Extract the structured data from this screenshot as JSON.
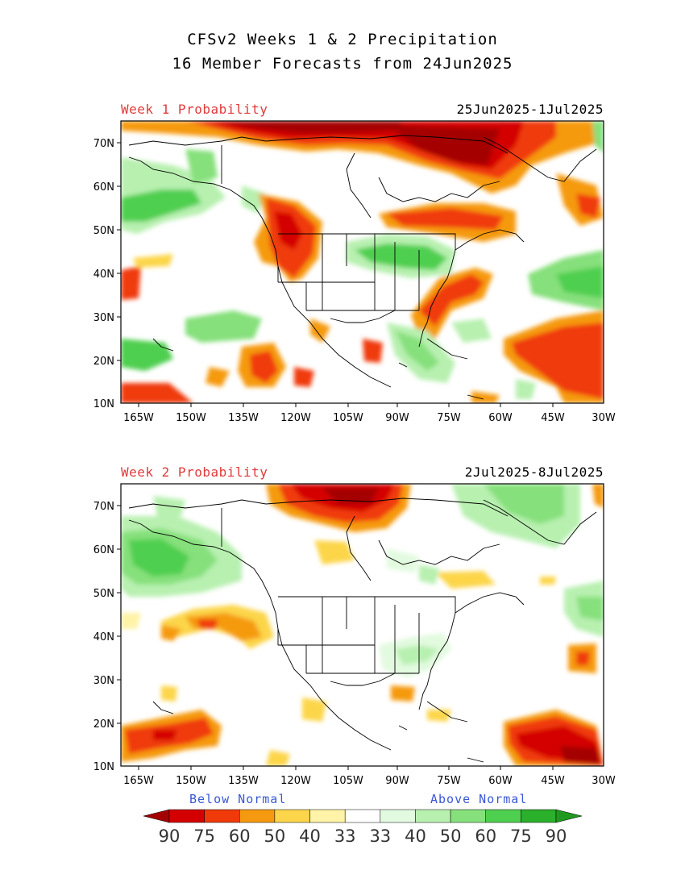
{
  "header": {
    "title_line1": "CFSv2 Weeks 1 & 2 Precipitation",
    "title_line2": "16 Member Forecasts from 24Jun2025"
  },
  "panels": [
    {
      "label": "Week 1 Probability",
      "dates": "25Jun2025-1Jul2025"
    },
    {
      "label": "Week 2 Probability",
      "dates": "2Jul2025-8Jul2025"
    }
  ],
  "axes": {
    "lat_labels": [
      "70N",
      "60N",
      "50N",
      "40N",
      "30N",
      "20N",
      "10N"
    ],
    "lon_labels": [
      "165W",
      "150W",
      "135W",
      "120W",
      "105W",
      "90W",
      "75W",
      "60W",
      "45W",
      "30W"
    ]
  },
  "legend": {
    "below_label": "Below Normal",
    "above_label": "Above Normal",
    "tick_labels": [
      "90",
      "75",
      "60",
      "50",
      "40",
      "33",
      "33",
      "40",
      "50",
      "60",
      "75",
      "90"
    ],
    "colors": [
      "#a50000",
      "#d40000",
      "#f03a0a",
      "#f59a10",
      "#fcd54a",
      "#fef3a6",
      "#ffffff",
      "#e2fadf",
      "#b8f0b0",
      "#86e07c",
      "#4fcf4f",
      "#2ab02a",
      "#1f9a1f"
    ]
  },
  "colors": {
    "below_dark": "#a50000",
    "below_red": "#d40000",
    "below_orange_red": "#f03a0a",
    "below_orange": "#f59a10",
    "below_yellow": "#fcd54a",
    "below_pale": "#fef3a6",
    "above_pale": "#e2fadf",
    "above_light": "#b8f0b0",
    "above_mid": "#86e07c",
    "above_green": "#4fcf4f",
    "above_dark": "#2ab02a"
  }
}
